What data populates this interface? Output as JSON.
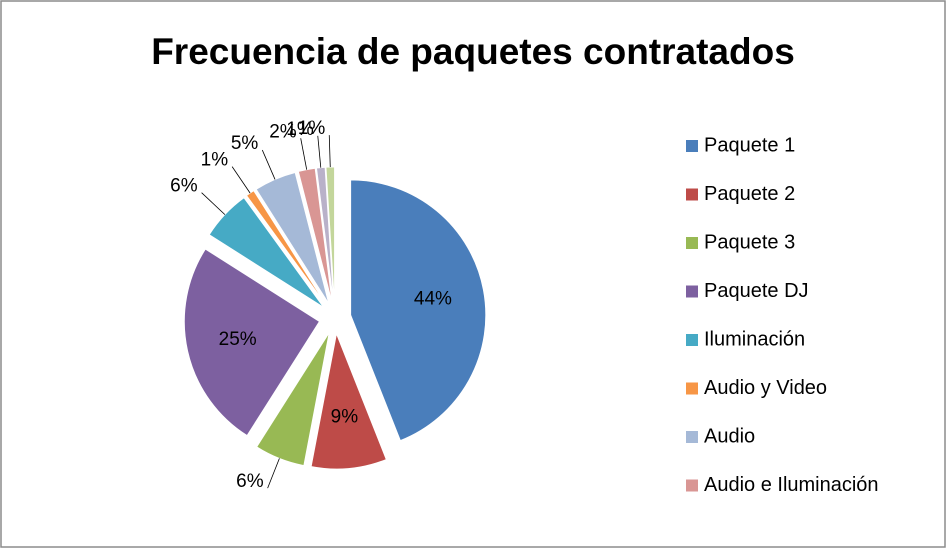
{
  "chart_data": {
    "type": "pie",
    "title": "Frecuencia  de paquetes contratados",
    "categories": [
      "Paquete 1",
      "Paquete 2",
      "Paquete 3",
      "Paquete DJ",
      "Iluminación",
      "Audio y Video",
      "Audio",
      "Audio e Iluminación",
      null,
      null
    ],
    "values": [
      44,
      9,
      6,
      25,
      6,
      1,
      5,
      2,
      1,
      1
    ],
    "value_labels": [
      "44%",
      "9%",
      "6%",
      "25%",
      "6%",
      "1%",
      "5%",
      "2%",
      "1%",
      "1%"
    ],
    "colors": [
      "#4a7ebb",
      "#be4b48",
      "#98b954",
      "#7d60a0",
      "#46aac5",
      "#f79646",
      "#a5b9d7",
      "#d99694",
      "#b9b1c9",
      "#c3d69b"
    ],
    "legend": "right"
  }
}
